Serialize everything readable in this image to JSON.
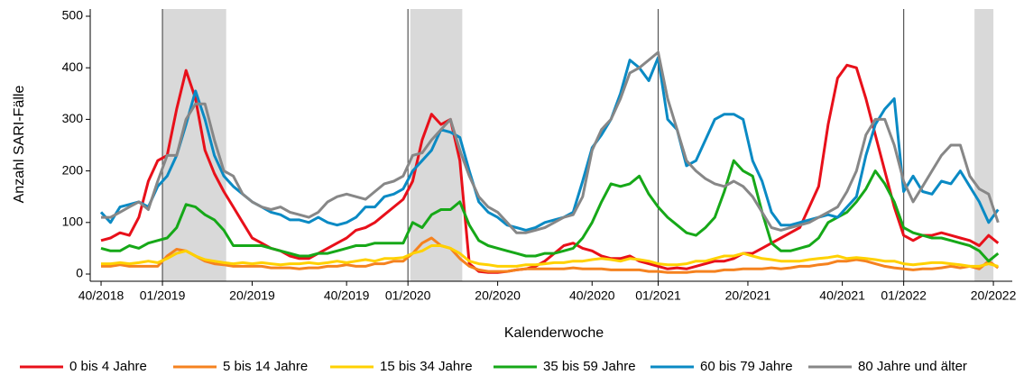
{
  "chart_data": {
    "type": "line",
    "y_label": "Anzahl SARI-Fälle",
    "x_label": "Kalenderwoche",
    "xlim": [
      -2.3,
      193
    ],
    "ylim": [
      -14,
      514
    ],
    "yticks": [
      0,
      100,
      200,
      300,
      400,
      500
    ],
    "xticks": [
      {
        "value": 0,
        "label": "40/2018"
      },
      {
        "value": 13,
        "label": "01/2019"
      },
      {
        "value": 32,
        "label": "20/2019"
      },
      {
        "value": 52,
        "label": "40/2019"
      },
      {
        "value": 65,
        "label": "01/2020"
      },
      {
        "value": 84,
        "label": "20/2020"
      },
      {
        "value": 104,
        "label": "40/2020"
      },
      {
        "value": 118,
        "label": "01/2021"
      },
      {
        "value": 137,
        "label": "20/2021"
      },
      {
        "value": 157,
        "label": "40/2021"
      },
      {
        "value": 170,
        "label": "01/2022"
      },
      {
        "value": 189,
        "label": "20/2022"
      }
    ],
    "shaded_periods": [
      [
        13,
        26.5
      ],
      [
        65.5,
        76.5
      ],
      [
        185,
        189
      ]
    ],
    "shade_color": "#d9d9d9",
    "x": [
      0,
      2,
      4,
      6,
      8,
      10,
      12,
      14,
      16,
      18,
      20,
      22,
      24,
      26,
      28,
      30,
      32,
      34,
      36,
      38,
      40,
      42,
      44,
      46,
      48,
      50,
      52,
      54,
      56,
      58,
      60,
      62,
      64,
      66,
      68,
      70,
      72,
      74,
      76,
      78,
      80,
      82,
      84,
      86,
      88,
      90,
      92,
      94,
      96,
      98,
      100,
      102,
      104,
      106,
      108,
      110,
      112,
      114,
      116,
      118,
      120,
      122,
      124,
      126,
      128,
      130,
      132,
      134,
      136,
      138,
      140,
      142,
      144,
      146,
      148,
      150,
      152,
      154,
      156,
      158,
      160,
      162,
      164,
      166,
      168,
      170,
      172,
      174,
      176,
      178,
      180,
      182,
      184,
      186,
      188,
      190
    ],
    "series": [
      {
        "name": "0 bis 4 Jahre",
        "color": "#e8101a",
        "values": [
          65,
          70,
          80,
          75,
          110,
          180,
          220,
          230,
          320,
          395,
          340,
          240,
          195,
          160,
          130,
          100,
          70,
          60,
          50,
          45,
          35,
          30,
          30,
          40,
          50,
          60,
          70,
          85,
          90,
          100,
          115,
          130,
          145,
          180,
          260,
          310,
          290,
          300,
          220,
          20,
          5,
          3,
          3,
          5,
          8,
          10,
          15,
          25,
          40,
          55,
          60,
          50,
          45,
          35,
          30,
          30,
          35,
          25,
          20,
          15,
          10,
          12,
          10,
          15,
          20,
          25,
          25,
          30,
          40,
          40,
          50,
          60,
          70,
          80,
          90,
          130,
          170,
          290,
          380,
          405,
          400,
          340,
          270,
          200,
          130,
          75,
          65,
          75,
          75,
          80,
          75,
          70,
          65,
          55,
          75,
          60
        ]
      },
      {
        "name": "5 bis 14 Jahre",
        "color": "#f5821f",
        "values": [
          15,
          15,
          18,
          15,
          15,
          15,
          15,
          35,
          48,
          45,
          35,
          25,
          20,
          18,
          15,
          15,
          15,
          15,
          12,
          12,
          12,
          10,
          12,
          12,
          15,
          15,
          18,
          15,
          15,
          20,
          20,
          25,
          25,
          40,
          60,
          70,
          55,
          50,
          30,
          15,
          8,
          5,
          5,
          5,
          8,
          10,
          10,
          10,
          10,
          10,
          12,
          10,
          10,
          10,
          8,
          8,
          8,
          8,
          5,
          5,
          3,
          3,
          3,
          5,
          5,
          5,
          8,
          8,
          10,
          10,
          10,
          12,
          10,
          12,
          15,
          15,
          18,
          20,
          25,
          25,
          28,
          25,
          20,
          15,
          12,
          10,
          8,
          10,
          10,
          12,
          15,
          12,
          15,
          10,
          25,
          12
        ]
      },
      {
        "name": "15 bis 34 Jahre",
        "color": "#ffd100",
        "values": [
          20,
          20,
          22,
          20,
          22,
          25,
          22,
          30,
          40,
          45,
          35,
          28,
          25,
          22,
          20,
          22,
          20,
          22,
          20,
          18,
          20,
          20,
          22,
          20,
          22,
          25,
          22,
          25,
          28,
          25,
          30,
          30,
          32,
          40,
          45,
          55,
          55,
          50,
          40,
          25,
          20,
          18,
          15,
          15,
          15,
          18,
          18,
          20,
          22,
          22,
          25,
          25,
          28,
          30,
          28,
          25,
          30,
          28,
          25,
          20,
          18,
          18,
          20,
          25,
          25,
          30,
          35,
          35,
          40,
          35,
          30,
          28,
          25,
          25,
          25,
          28,
          30,
          32,
          35,
          30,
          32,
          30,
          28,
          25,
          25,
          20,
          18,
          20,
          22,
          22,
          20,
          18,
          15,
          15,
          20,
          15
        ]
      },
      {
        "name": "35 bis 59 Jahre",
        "color": "#16a818",
        "values": [
          50,
          45,
          45,
          55,
          50,
          60,
          65,
          70,
          90,
          135,
          130,
          115,
          105,
          85,
          55,
          55,
          55,
          55,
          50,
          45,
          40,
          35,
          35,
          40,
          40,
          45,
          50,
          55,
          55,
          60,
          60,
          60,
          60,
          100,
          90,
          115,
          125,
          125,
          140,
          95,
          65,
          55,
          50,
          45,
          40,
          35,
          35,
          40,
          40,
          45,
          50,
          70,
          100,
          140,
          175,
          170,
          175,
          190,
          155,
          130,
          110,
          95,
          80,
          75,
          90,
          110,
          160,
          220,
          200,
          190,
          120,
          60,
          45,
          45,
          50,
          55,
          70,
          100,
          110,
          120,
          140,
          165,
          200,
          175,
          140,
          90,
          80,
          75,
          70,
          70,
          65,
          60,
          55,
          45,
          25,
          40
        ]
      },
      {
        "name": "60 bis 79 Jahre",
        "color": "#0a8ac4",
        "values": [
          120,
          100,
          130,
          135,
          140,
          130,
          170,
          190,
          230,
          290,
          355,
          300,
          230,
          190,
          170,
          155,
          140,
          130,
          120,
          115,
          105,
          105,
          100,
          110,
          100,
          95,
          100,
          110,
          130,
          130,
          150,
          155,
          165,
          200,
          220,
          240,
          280,
          275,
          265,
          200,
          140,
          120,
          110,
          95,
          90,
          85,
          90,
          100,
          105,
          110,
          120,
          180,
          245,
          270,
          300,
          350,
          415,
          400,
          375,
          420,
          300,
          280,
          210,
          220,
          260,
          300,
          310,
          310,
          300,
          220,
          180,
          120,
          95,
          95,
          100,
          105,
          110,
          115,
          110,
          130,
          150,
          230,
          290,
          320,
          340,
          160,
          190,
          160,
          155,
          180,
          175,
          200,
          170,
          140,
          100,
          125
        ]
      },
      {
        "name": "80 Jahre und älter",
        "color": "#878787",
        "values": [
          110,
          110,
          120,
          130,
          140,
          125,
          180,
          230,
          230,
          300,
          330,
          330,
          260,
          200,
          190,
          155,
          140,
          130,
          125,
          130,
          120,
          115,
          110,
          120,
          140,
          150,
          155,
          150,
          145,
          160,
          175,
          180,
          190,
          230,
          235,
          260,
          280,
          300,
          240,
          190,
          150,
          130,
          120,
          100,
          80,
          80,
          85,
          90,
          100,
          110,
          115,
          150,
          240,
          280,
          300,
          340,
          390,
          400,
          415,
          430,
          340,
          280,
          220,
          200,
          185,
          175,
          170,
          180,
          170,
          150,
          120,
          90,
          85,
          90,
          95,
          100,
          110,
          120,
          130,
          160,
          200,
          270,
          300,
          300,
          250,
          180,
          140,
          170,
          200,
          230,
          250,
          250,
          190,
          165,
          155,
          100
        ]
      }
    ]
  }
}
